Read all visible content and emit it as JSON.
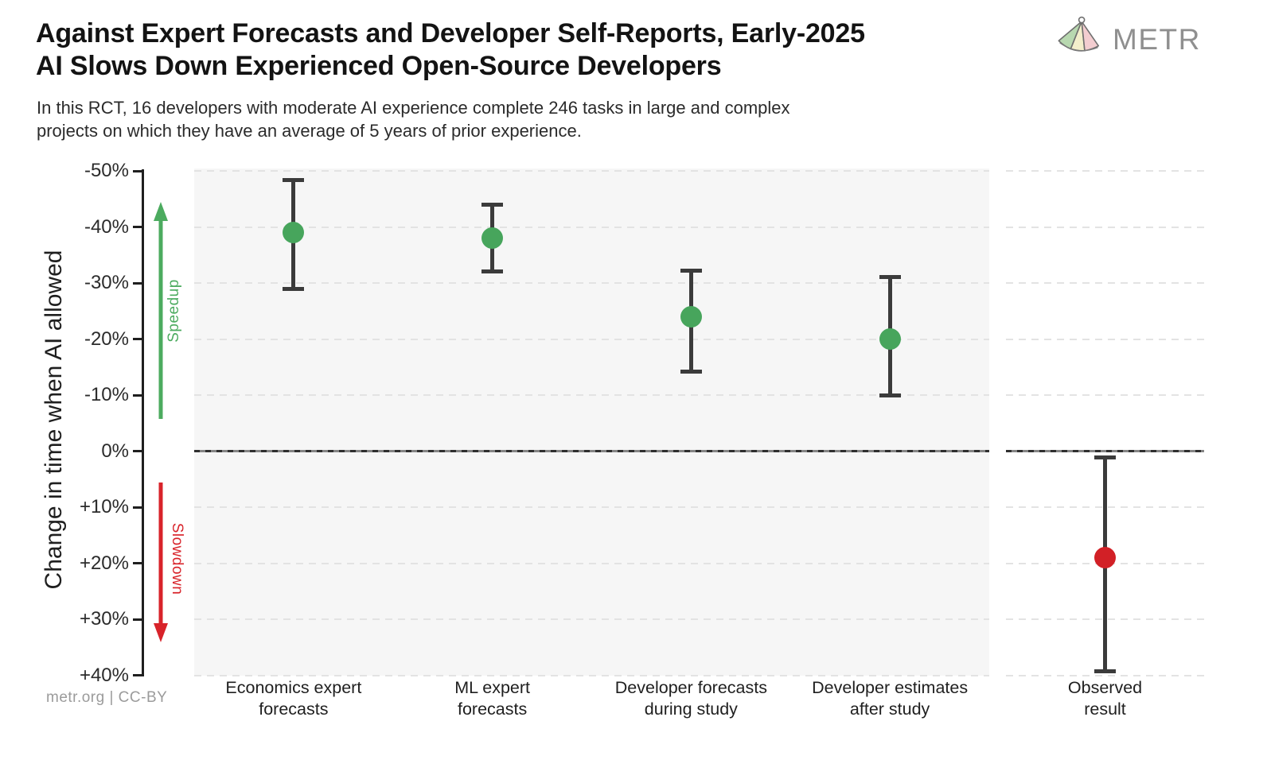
{
  "header": {
    "title_line1": "Against Expert Forecasts and Developer Self-Reports, Early-2025",
    "title_line2": "AI Slows Down Experienced Open-Source Developers",
    "subtitle_line1": "In this RCT, 16 developers with moderate AI experience complete 246 tasks in large and complex",
    "subtitle_line2": "projects on which they have an average of 5 years of prior experience.",
    "logo_text": "METR"
  },
  "footer": {
    "credit": "metr.org  |  CC-BY"
  },
  "chart_data": {
    "type": "scatter",
    "title": "Against Expert Forecasts and Developer Self-Reports, Early-2025 AI Slows Down Experienced Open-Source Developers",
    "xlabel": "",
    "ylabel": "Change in time when AI allowed",
    "ylim": [
      -50,
      40
    ],
    "y_axis_inverted": true,
    "grid": "dashed horizontal gridlines every 10%, solid dashed line at 0%",
    "legend": "none",
    "y_axis": {
      "tick_values": [
        -50,
        -40,
        -30,
        -20,
        -10,
        0,
        10,
        20,
        30,
        40
      ],
      "tick_labels": [
        "-50%",
        "-40%",
        "-30%",
        "-20%",
        "-10%",
        "0%",
        "+10%",
        "+20%",
        "+30%",
        "+40%"
      ]
    },
    "zero_line_value": 0,
    "annotations": {
      "speedup": {
        "label": "Speedup",
        "color": "#4cab5f",
        "direction": "up",
        "region": "values below 0%"
      },
      "slowdown": {
        "label": "Slowdown",
        "color": "#d8232a",
        "direction": "down",
        "region": "values above 0%"
      }
    },
    "colors": {
      "point_green": "#47a55c",
      "point_red": "#d22026",
      "error_bar": "#3b3b3b",
      "gridline": "#e3e3e3",
      "main_panel_bg": "#f6f6f6",
      "observed_panel_bg": "#ffffff",
      "axis": "#1f1f1f"
    },
    "series": [
      {
        "category": "Economics expert forecasts",
        "label_lines": [
          "Economics expert",
          "forecasts"
        ],
        "value": -39,
        "ci": [
          -48.3,
          -29
        ],
        "color": "#47a55c",
        "panel": "main"
      },
      {
        "category": "ML expert forecasts",
        "label_lines": [
          "ML expert",
          "forecasts"
        ],
        "value": -38,
        "ci": [
          -44,
          -32
        ],
        "color": "#47a55c",
        "panel": "main"
      },
      {
        "category": "Developer forecasts during study",
        "label_lines": [
          "Developer forecasts",
          "during study"
        ],
        "value": -24,
        "ci": [
          -32.2,
          -14.2
        ],
        "color": "#47a55c",
        "panel": "main"
      },
      {
        "category": "Developer estimates after study",
        "label_lines": [
          "Developer estimates",
          "after study"
        ],
        "value": -20,
        "ci": [
          -31,
          -10
        ],
        "color": "#47a55c",
        "panel": "main"
      },
      {
        "category": "Observed result",
        "label_lines": [
          "Observed",
          "result"
        ],
        "value": 19,
        "ci": [
          1.2,
          39.3
        ],
        "color": "#d22026",
        "panel": "observed"
      }
    ]
  }
}
